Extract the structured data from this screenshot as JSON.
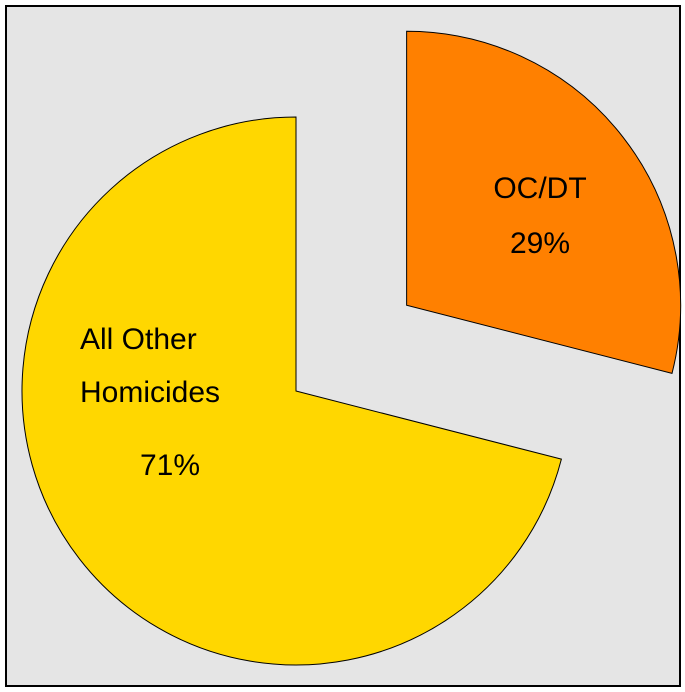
{
  "chart_data": {
    "type": "pie",
    "categories": [
      "OC/DT",
      "All Other Homicides"
    ],
    "values": [
      29,
      71
    ],
    "value_labels": [
      "29%",
      "71%"
    ],
    "colors": [
      "#ff8000",
      "#ffd700"
    ],
    "exploded": [
      true,
      false
    ]
  }
}
